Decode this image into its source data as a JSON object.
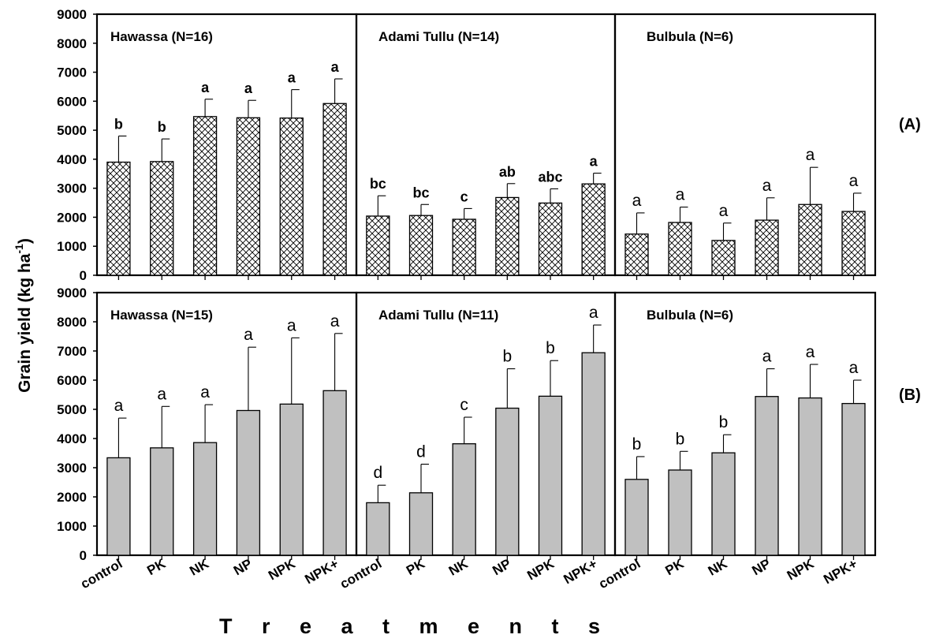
{
  "chart_data": {
    "type": "bar",
    "xlabel": "T r e a t m e n t s",
    "ylabel": "Grain yield (kg ha",
    "ylabel_sup": "-1",
    "ylabel_close": ")",
    "ylim": [
      0,
      9000
    ],
    "yticks": [
      0,
      1000,
      2000,
      3000,
      4000,
      5000,
      6000,
      7000,
      8000,
      9000
    ],
    "categories": [
      "control",
      "PK",
      "NK",
      "NP",
      "NPK",
      "NPK+"
    ],
    "rows": [
      {
        "label": "(A)",
        "fill": "hatched",
        "panels": [
          {
            "title": "Hawassa (N=16)",
            "values": [
              3900,
              3920,
              5470,
              5430,
              5420,
              5920
            ],
            "errors": [
              900,
              780,
              600,
              600,
              980,
              850
            ],
            "letters": [
              "b",
              "b",
              "a",
              "a",
              "a",
              "a"
            ]
          },
          {
            "title": "Adami Tullu (N=14)",
            "values": [
              2040,
              2060,
              1930,
              2680,
              2490,
              3150
            ],
            "errors": [
              700,
              380,
              370,
              480,
              490,
              370
            ],
            "letters": [
              "bc",
              "bc",
              "c",
              "ab",
              "abc",
              "a"
            ]
          },
          {
            "title": "Bulbula (N=6)",
            "values": [
              1420,
              1820,
              1200,
              1900,
              2440,
              2200
            ],
            "errors": [
              730,
              530,
              600,
              770,
              1280,
              630
            ],
            "letters": [
              "a",
              "a",
              "a",
              "a",
              "a",
              "a"
            ]
          }
        ]
      },
      {
        "label": "(B)",
        "fill": "gray",
        "panels": [
          {
            "title": "Hawassa (N=15)",
            "values": [
              3340,
              3680,
              3860,
              4960,
              5180,
              5640
            ],
            "errors": [
              1360,
              1420,
              1300,
              2170,
              2270,
              1960
            ],
            "letters": [
              "a",
              "a",
              "a",
              "a",
              "a",
              "a"
            ]
          },
          {
            "title": "Adami Tullu (N=11)",
            "values": [
              1800,
              2140,
              3820,
              5040,
              5450,
              6940
            ],
            "errors": [
              600,
              980,
              910,
              1350,
              1220,
              950
            ],
            "letters": [
              "d",
              "d",
              "c",
              "b",
              "b",
              "a"
            ]
          },
          {
            "title": "Bulbula (N=6)",
            "values": [
              2600,
              2920,
              3510,
              5440,
              5390,
              5200
            ],
            "errors": [
              780,
              640,
              620,
              950,
              1150,
              800
            ],
            "letters": [
              "b",
              "b",
              "b",
              "a",
              "a",
              "a"
            ]
          }
        ]
      }
    ]
  }
}
